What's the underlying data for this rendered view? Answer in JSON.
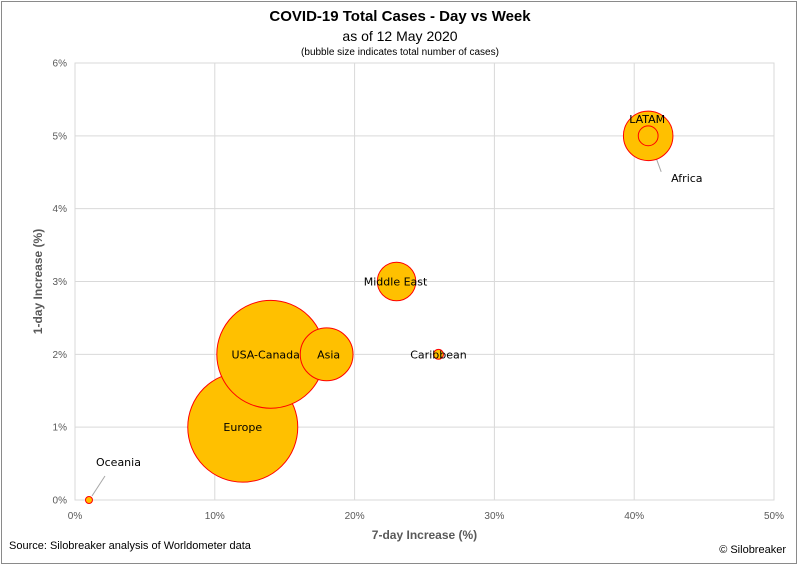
{
  "header": {
    "title": "COVID-19 Total Cases - Day vs Week",
    "subtitle": "as of 12 May 2020",
    "note": "(bubble size indicates total number of cases)"
  },
  "footer": {
    "source": "Source: Silobreaker analysis of Worldometer data",
    "copyright": "© Silobreaker"
  },
  "chart_data": {
    "type": "scatter",
    "subtype": "bubble",
    "title": "COVID-19 Total Cases - Day vs Week",
    "subtitle": "as of 12 May 2020",
    "xlabel": "7-day Increase (%)",
    "ylabel": "1-day Increase (%)",
    "xlim": [
      0,
      50
    ],
    "ylim": [
      0,
      6
    ],
    "x_ticks": [
      0,
      10,
      20,
      30,
      40,
      50
    ],
    "x_tick_labels": [
      "0%",
      "10%",
      "20%",
      "30%",
      "40%",
      "50%"
    ],
    "y_ticks": [
      0,
      1,
      2,
      3,
      4,
      5,
      6
    ],
    "y_tick_labels": [
      "0%",
      "1%",
      "2%",
      "3%",
      "4%",
      "5%",
      "6%"
    ],
    "grid": true,
    "bubble_fill": "#ffc000",
    "bubble_stroke": "#ff0000",
    "points": [
      {
        "label": "Oceania",
        "x": 1,
        "y": 0,
        "relative_size": 0.06
      },
      {
        "label": "Europe",
        "x": 12,
        "y": 1,
        "relative_size": 1.0
      },
      {
        "label": "USA-Canada",
        "x": 14,
        "y": 2,
        "relative_size": 0.98
      },
      {
        "label": "Asia",
        "x": 18,
        "y": 2,
        "relative_size": 0.48
      },
      {
        "label": "Middle East",
        "x": 23,
        "y": 3,
        "relative_size": 0.35
      },
      {
        "label": "Caribbean",
        "x": 26,
        "y": 2,
        "relative_size": 0.09
      },
      {
        "label": "LATAM",
        "x": 41,
        "y": 5,
        "relative_size": 0.45
      },
      {
        "label": "Africa",
        "x": 41,
        "y": 5,
        "relative_size": 0.18
      }
    ]
  }
}
